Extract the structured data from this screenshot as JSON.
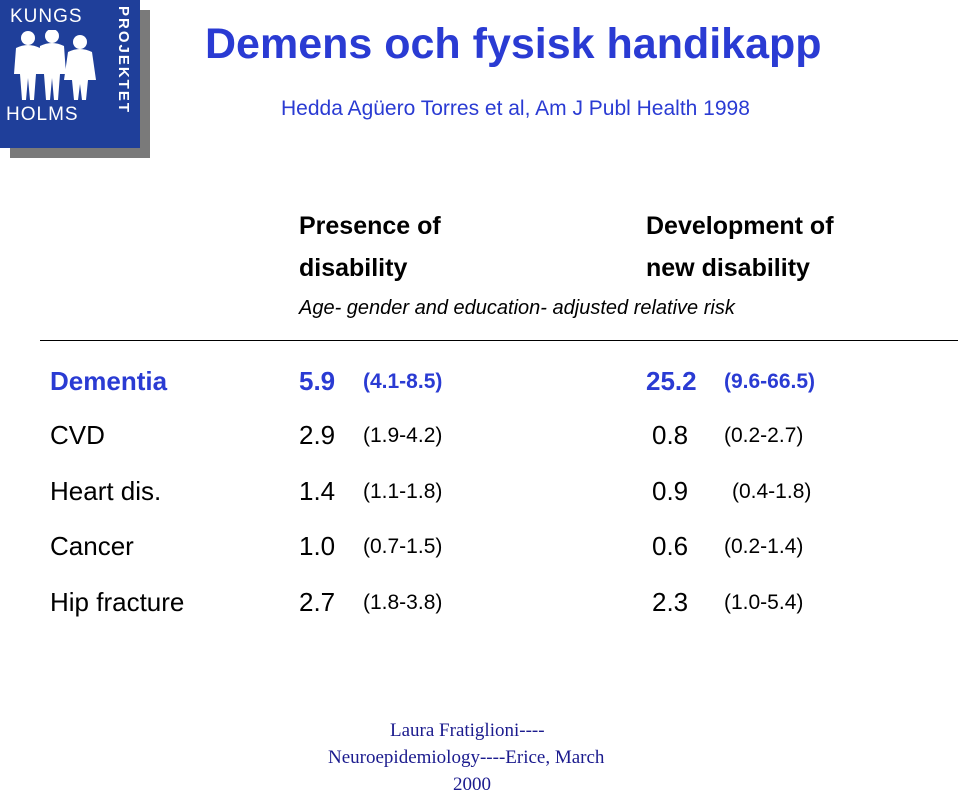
{
  "logo": {
    "top_text": "KUNGS",
    "bottom_text": "HOLMS",
    "side_text": "PROJEKTET"
  },
  "title": "Demens och fysisk handikapp",
  "subtitle": "Hedda Agüero Torres et al, Am J Publ Health 1998",
  "columns": {
    "presence_line1": "Presence of",
    "presence_line2": "disability",
    "development_line1": "Development of",
    "development_line2": "new disability"
  },
  "note": "Age- gender and education- adjusted relative risk",
  "rows": [
    {
      "label": "Dementia",
      "rr1": "5.9",
      "ci1": "(4.1-8.5)",
      "rr2": "25.2",
      "ci2": "(9.6-66.5)"
    },
    {
      "label": "CVD",
      "rr1": "2.9",
      "ci1": "(1.9-4.2)",
      "rr2": "0.8",
      "ci2": "(0.2-2.7)"
    },
    {
      "label": "Heart dis.",
      "rr1": "1.4",
      "ci1": "(1.1-1.8)",
      "rr2": "0.9",
      "ci2": "(0.4-1.8)"
    },
    {
      "label": "Cancer",
      "rr1": "1.0",
      "ci1": "(0.7-1.5)",
      "rr2": "0.6",
      "ci2": "(0.2-1.4)"
    },
    {
      "label": "Hip fracture",
      "rr1": "2.7",
      "ci1": "(1.8-3.8)",
      "rr2": "2.3",
      "ci2": "(1.0-5.4)"
    }
  ],
  "footer": {
    "line1": "Laura Fratiglioni----",
    "line2": "Neuroepidemiology----Erice, March",
    "line3": "2000"
  },
  "colors": {
    "title": "#2a3bd3",
    "logo_bg": "#1f3f9a",
    "footer": "#1b1b8e"
  }
}
